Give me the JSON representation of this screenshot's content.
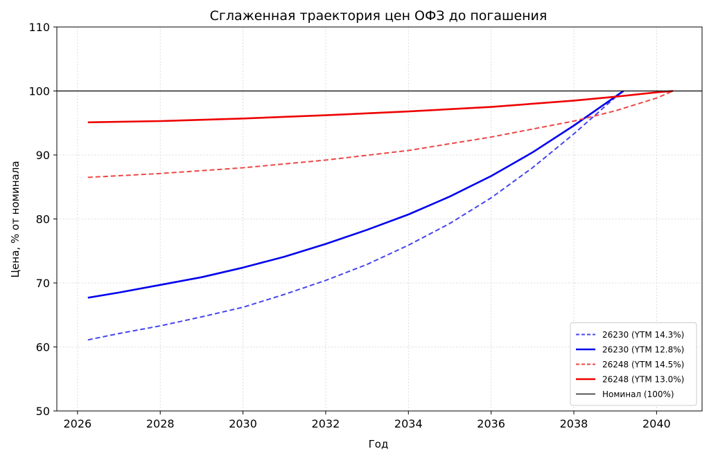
{
  "chart_data": {
    "type": "line",
    "title": "Сглаженная траектория цен ОФЗ до погашения",
    "xlabel": "Год",
    "ylabel": "Цена, % от номинала",
    "xlim": [
      2025.5,
      2041.1
    ],
    "ylim": [
      50,
      110
    ],
    "xticks": [
      2026,
      2028,
      2030,
      2032,
      2034,
      2036,
      2038,
      2040
    ],
    "yticks": [
      50,
      60,
      70,
      80,
      90,
      100,
      110
    ],
    "grid": true,
    "legend_position": "bottom-right",
    "series": [
      {
        "name": "26230 (YTM 14.3%)",
        "color": "#4444ee",
        "dash": "dashed",
        "x": [
          2026.25,
          2027,
          2028,
          2029,
          2030,
          2031,
          2032,
          2033,
          2034,
          2035,
          2036,
          2037,
          2038,
          2039,
          2039.2
        ],
        "y": [
          61.1,
          62.1,
          63.3,
          64.7,
          66.2,
          68.2,
          70.4,
          72.9,
          75.9,
          79.3,
          83.3,
          88.0,
          93.3,
          99.0,
          100.0
        ]
      },
      {
        "name": "26230 (YTM 12.8%)",
        "color": "#0000ee",
        "dash": "solid",
        "x": [
          2026.25,
          2027,
          2028,
          2029,
          2030,
          2031,
          2032,
          2033,
          2034,
          2035,
          2036,
          2037,
          2038,
          2039,
          2039.2
        ],
        "y": [
          67.7,
          68.5,
          69.7,
          70.9,
          72.4,
          74.1,
          76.1,
          78.3,
          80.7,
          83.5,
          86.7,
          90.4,
          94.6,
          99.1,
          100.0
        ]
      },
      {
        "name": "26248 (YTM 14.5%)",
        "color": "#ee4444",
        "dash": "dashed",
        "x": [
          2026.25,
          2028,
          2030,
          2032,
          2034,
          2036,
          2038,
          2039,
          2040,
          2040.4
        ],
        "y": [
          86.5,
          87.1,
          88.0,
          89.2,
          90.7,
          92.8,
          95.3,
          96.9,
          98.9,
          100.0
        ]
      },
      {
        "name": "26248 (YTM 13.0%)",
        "color": "#ee0000",
        "dash": "solid",
        "x": [
          2026.25,
          2028,
          2030,
          2032,
          2034,
          2036,
          2038,
          2039,
          2040,
          2040.4
        ],
        "y": [
          95.1,
          95.3,
          95.7,
          96.2,
          96.8,
          97.5,
          98.5,
          99.1,
          99.8,
          100.0
        ]
      },
      {
        "name": "Номинал (100%)",
        "color": "#000000",
        "dash": "solid",
        "x": [
          2025.5,
          2041.1
        ],
        "y": [
          100,
          100
        ]
      }
    ]
  }
}
